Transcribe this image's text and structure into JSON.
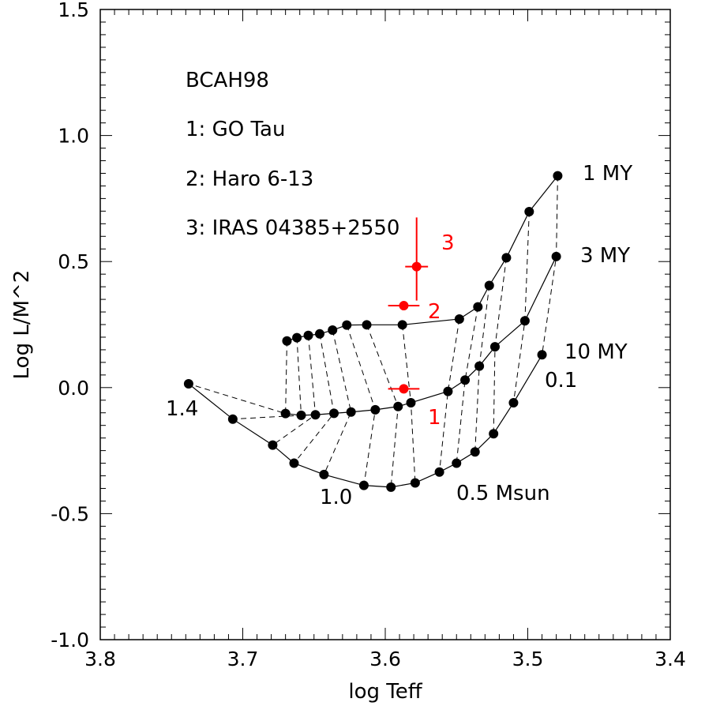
{
  "chart_data": {
    "type": "scatter",
    "xlabel": "log Teff",
    "ylabel": "Log L/M^2",
    "xlim": [
      3.8,
      3.4
    ],
    "ylim": [
      -1.0,
      1.5
    ],
    "x_ticks": [
      "3.8",
      "3.7",
      "3.6",
      "3.5",
      "3.4"
    ],
    "y_ticks": [
      "1.5",
      "1.0",
      "0.5",
      "0.0",
      "-0.5",
      "-1.0"
    ],
    "x_tick_values": [
      3.8,
      3.7,
      3.6,
      3.5,
      3.4
    ],
    "y_tick_values": [
      1.5,
      1.0,
      0.5,
      0.0,
      -0.5,
      -1.0
    ],
    "grid": false,
    "legend_text": [
      "BCAH98",
      "1: GO Tau",
      "2: Haro 6-13",
      "3: IRAS 04385+2550"
    ],
    "isochrones": [
      {
        "name": "1 MY",
        "x": [
          3.669,
          3.662,
          3.654,
          3.646,
          3.637,
          3.627,
          3.613,
          3.588,
          3.548,
          3.535,
          3.527,
          3.515,
          3.499,
          3.479
        ],
        "y": [
          0.185,
          0.198,
          0.207,
          0.213,
          0.228,
          0.248,
          0.249,
          0.249,
          0.272,
          0.32,
          0.405,
          0.515,
          0.698,
          0.84
        ]
      },
      {
        "name": "3 MY",
        "x": [
          3.67,
          3.659,
          3.649,
          3.636,
          3.624,
          3.607,
          3.591,
          3.582,
          3.556,
          3.544,
          3.534,
          3.523,
          3.502,
          3.48
        ],
        "y": [
          -0.103,
          -0.11,
          -0.108,
          -0.102,
          -0.097,
          -0.088,
          -0.075,
          -0.06,
          -0.015,
          0.03,
          0.085,
          0.162,
          0.265,
          0.52
        ]
      },
      {
        "name": "10 MY",
        "x": [
          3.738,
          3.707,
          3.679,
          3.664,
          3.643,
          3.615,
          3.596,
          3.579,
          3.562,
          3.55,
          3.537,
          3.524,
          3.51,
          3.49
        ],
        "y": [
          0.015,
          -0.125,
          -0.228,
          -0.3,
          -0.345,
          -0.388,
          -0.395,
          -0.378,
          -0.335,
          -0.3,
          -0.255,
          -0.183,
          -0.06,
          0.13
        ]
      }
    ],
    "isochrone_labels": [
      "1 MY",
      "3 MY",
      "10 MY"
    ],
    "mass_labels": [
      "1.4",
      "1.0",
      "0.5 Msun",
      "0.1"
    ],
    "stars": [
      {
        "label": "1",
        "x": 3.587,
        "y": -0.005,
        "x_err": 0.011,
        "y_err_low": 0.0,
        "y_err_high": 0.0
      },
      {
        "label": "2",
        "x": 3.587,
        "y": 0.325,
        "x_err": 0.011,
        "y_err_low": 0.0,
        "y_err_high": 0.0
      },
      {
        "label": "3",
        "x": 3.578,
        "y": 0.48,
        "x_err": 0.008,
        "y_err_low": 0.135,
        "y_err_high": 0.195
      }
    ],
    "colors": {
      "tracks": "#000000",
      "stars": "#ff0000",
      "background": "#ffffff"
    }
  }
}
